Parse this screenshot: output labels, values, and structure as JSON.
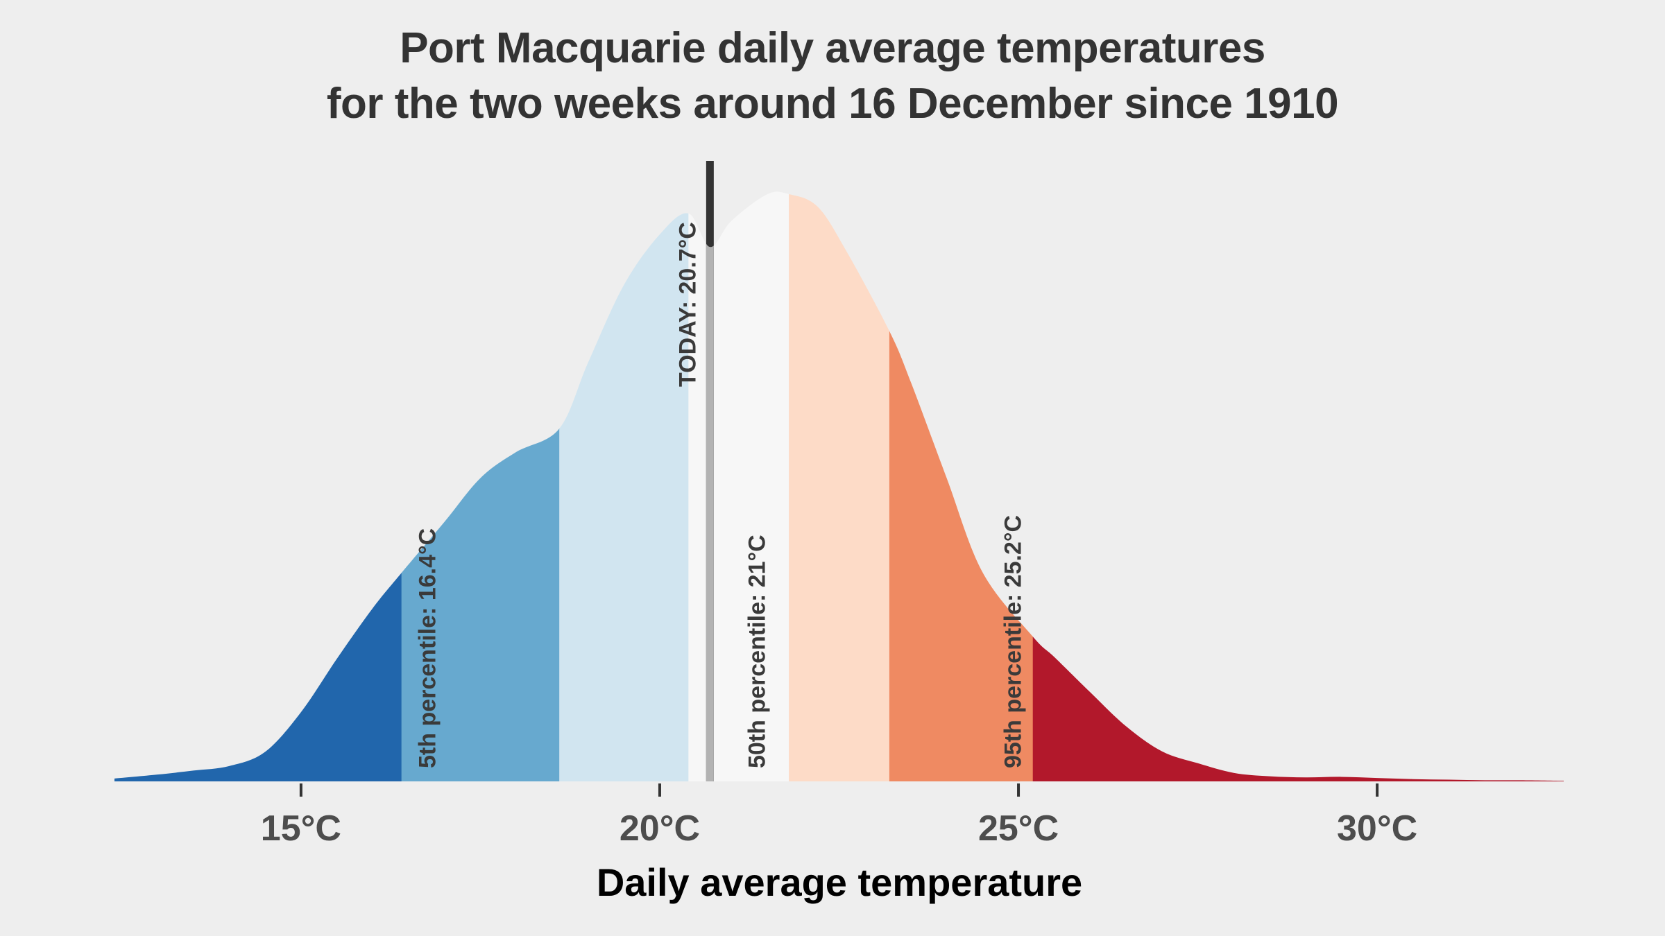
{
  "chart_data": {
    "type": "area",
    "title_lines": [
      "Port Macquarie daily average temperatures",
      "for the two weeks around 16 December since 1910"
    ],
    "xlabel": "Daily average temperature",
    "ylabel": "",
    "xlim": [
      12.4,
      32.6
    ],
    "x_ticks": [
      15,
      20,
      25,
      30
    ],
    "x_tick_labels": [
      "15°C",
      "20°C",
      "25°C",
      "30°C"
    ],
    "grid": false,
    "density_curve": {
      "x": [
        12.4,
        13.0,
        13.5,
        14.0,
        14.5,
        15.0,
        15.5,
        16.0,
        16.4,
        17.0,
        17.5,
        18.0,
        18.6,
        19.0,
        19.5,
        20.0,
        20.4,
        20.7,
        21.0,
        21.5,
        21.8,
        22.2,
        22.6,
        23.2,
        23.5,
        24.0,
        24.5,
        25.2,
        25.5,
        26.0,
        26.5,
        27.0,
        27.5,
        28.0,
        28.5,
        29.0,
        29.5,
        30.0,
        30.5,
        31.0,
        31.5,
        32.0,
        32.6
      ],
      "y": [
        0.005,
        0.012,
        0.019,
        0.027,
        0.052,
        0.122,
        0.216,
        0.305,
        0.367,
        0.457,
        0.534,
        0.58,
        0.621,
        0.737,
        0.874,
        0.963,
        1.0,
        0.941,
        0.987,
        1.034,
        1.034,
        1.012,
        0.934,
        0.793,
        0.703,
        0.534,
        0.368,
        0.255,
        0.219,
        0.157,
        0.097,
        0.053,
        0.032,
        0.015,
        0.009,
        0.007,
        0.008,
        0.006,
        0.004,
        0.003,
        0.002,
        0.002,
        0.001
      ]
    },
    "bands": [
      {
        "from": 12.4,
        "to": 16.4,
        "color": "#2166ac"
      },
      {
        "from": 16.4,
        "to": 18.6,
        "color": "#67a9cf"
      },
      {
        "from": 18.6,
        "to": 20.4,
        "color": "#d1e5f0"
      },
      {
        "from": 20.4,
        "to": 21.8,
        "color": "#f7f7f7"
      },
      {
        "from": 21.8,
        "to": 23.2,
        "color": "#fddbc7"
      },
      {
        "from": 23.2,
        "to": 25.2,
        "color": "#ef8a62"
      },
      {
        "from": 25.2,
        "to": 32.6,
        "color": "#b2182b"
      }
    ],
    "today": {
      "value": 20.7,
      "label": "TODAY:  20.7°C",
      "color": "#333333"
    },
    "percentiles": [
      {
        "name": "5th percentile",
        "value": 16.4,
        "label": "5th percentile:  16.4°C"
      },
      {
        "name": "50th percentile",
        "value": 21,
        "label": "50th percentile: 21°C"
      },
      {
        "name": "95th percentile",
        "value": 25.2,
        "label": "95th percentile:  25.2°C"
      }
    ]
  }
}
